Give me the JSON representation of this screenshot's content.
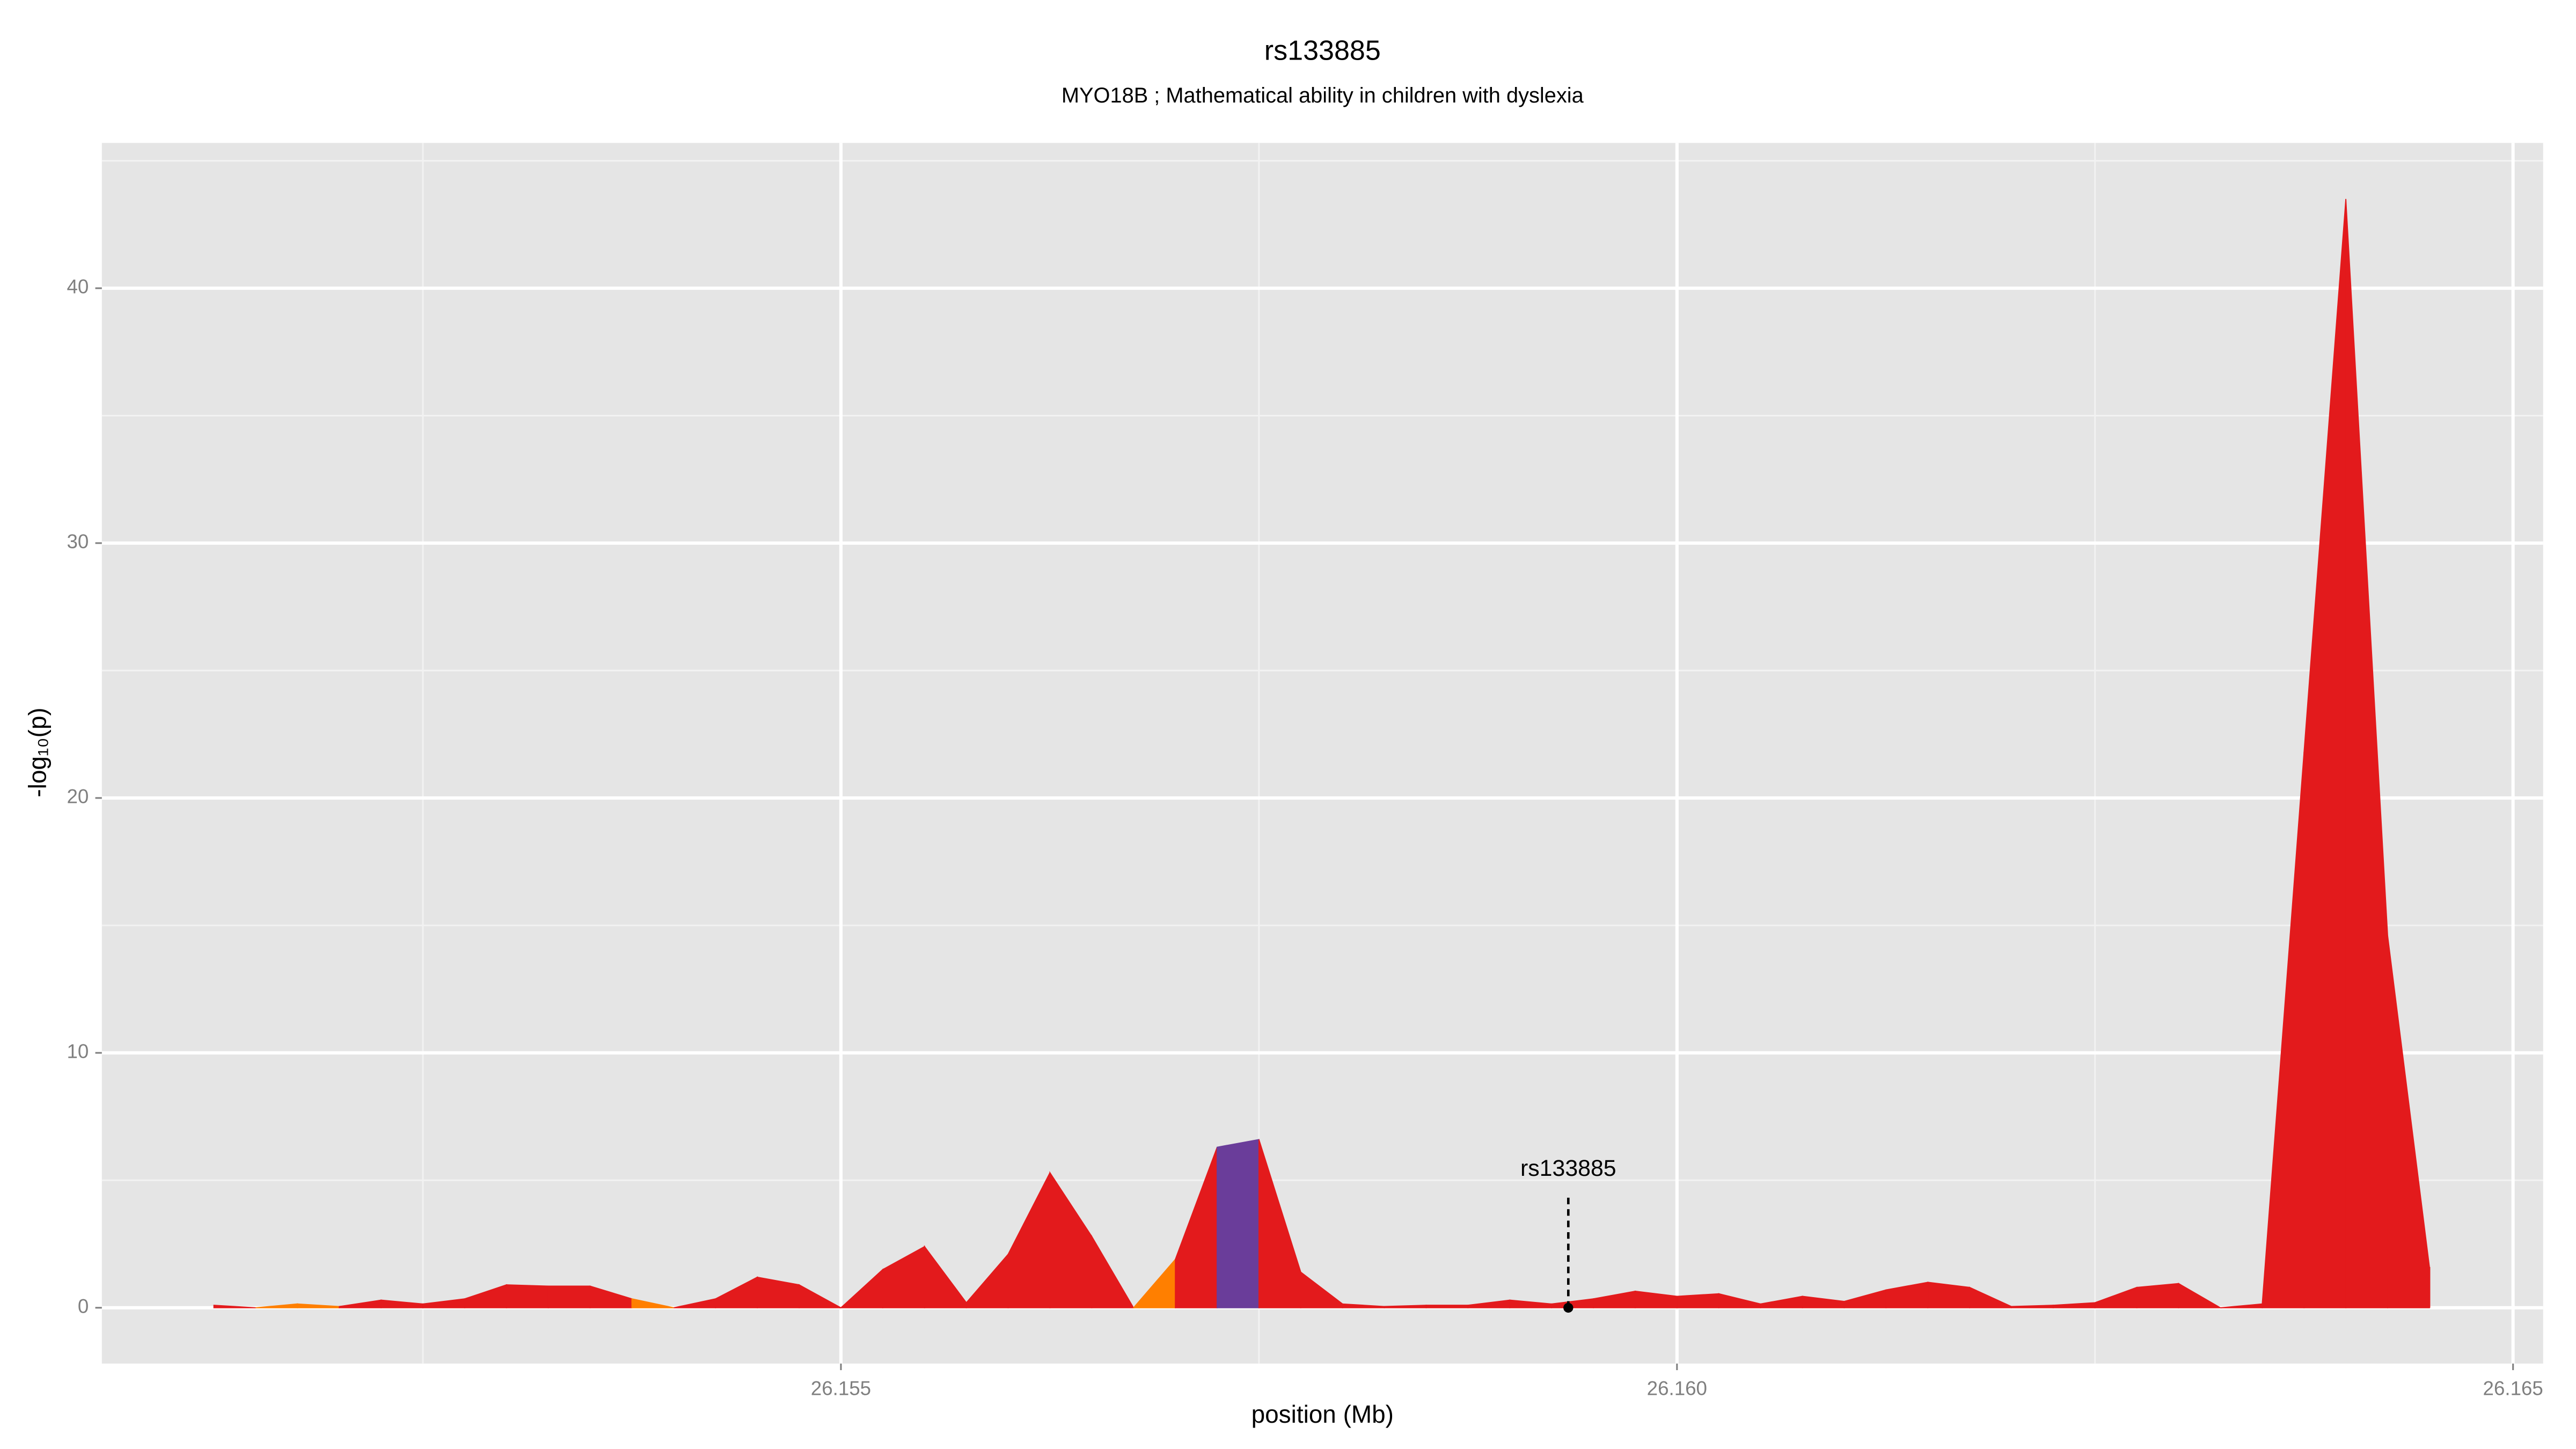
{
  "chart_data": {
    "type": "area",
    "title": "rs133885",
    "subtitle": "MYO18B ; Mathematical ability in children with dyslexia",
    "x_label": "position (Mb)",
    "y_label": "-log₁₀(p)",
    "x": [
      26.15125,
      26.1515,
      26.15175,
      26.152,
      26.15225,
      26.1525,
      26.15275,
      26.153,
      26.15325,
      26.1535,
      26.15375,
      26.154,
      26.15425,
      26.1545,
      26.15475,
      26.155,
      26.15525,
      26.1555,
      26.15575,
      26.156,
      26.15625,
      26.1565,
      26.15675,
      26.157,
      26.15725,
      26.1575,
      26.15775,
      26.158,
      26.15825,
      26.1585,
      26.15875,
      26.159,
      26.15925,
      26.1595,
      26.15975,
      26.16,
      26.16025,
      26.1605,
      26.16075,
      26.161,
      26.16125,
      26.1615,
      26.16175,
      26.162,
      26.16225,
      26.1625,
      26.16275,
      26.163,
      26.16325,
      26.1635,
      26.16375,
      26.164,
      26.16425,
      26.1645
    ],
    "values": [
      0.1,
      0,
      0.15,
      0.05,
      0.3,
      0.15,
      0.35,
      0.9,
      0.85,
      0.85,
      0.35,
      0,
      0.35,
      1.2,
      0.9,
      0,
      1.5,
      2.4,
      0.2,
      2.1,
      5.3,
      2.8,
      0,
      1.9,
      6.3,
      6.6,
      1.4,
      0.15,
      0.05,
      0.1,
      0.1,
      0.3,
      0.15,
      0.35,
      0.65,
      0.45,
      0.55,
      0.15,
      0.45,
      0.25,
      0.7,
      1.0,
      0.8,
      0.05,
      0.1,
      0.2,
      0.8,
      0.95,
      0,
      0.15,
      21.8,
      43.5,
      14.6,
      1.6
    ],
    "colors": [
      "#e31a1c",
      "#ff7f00",
      "#ff7f00",
      "#e31a1c",
      "#e31a1c",
      "#e31a1c",
      "#e31a1c",
      "#e31a1c",
      "#e31a1c",
      "#e31a1c",
      "#ff7f00",
      "#e31a1c",
      "#e31a1c",
      "#e31a1c",
      "#e31a1c",
      "#e31a1c",
      "#e31a1c",
      "#e31a1c",
      "#e31a1c",
      "#e31a1c",
      "#e31a1c",
      "#e31a1c",
      "#ff7f00",
      "#e31a1c",
      "#6a3d9a",
      "#e31a1c",
      "#e31a1c",
      "#e31a1c",
      "#e31a1c",
      "#e31a1c",
      "#e31a1c",
      "#e31a1c",
      "#e31a1c",
      "#e31a1c",
      "#e31a1c",
      "#e31a1c",
      "#e31a1c",
      "#e31a1c",
      "#e31a1c",
      "#e31a1c",
      "#e31a1c",
      "#e31a1c",
      "#e31a1c",
      "#e31a1c",
      "#e31a1c",
      "#e31a1c",
      "#e31a1c",
      "#e31a1c",
      "#e31a1c",
      "#e31a1c",
      "#e31a1c",
      "#e31a1c",
      "#e31a1c",
      "#e31a1c"
    ],
    "annotation": {
      "label": "rs133885",
      "x": 26.15935,
      "y": 0
    },
    "xlim": [
      26.15058,
      26.16518
    ],
    "ylim": [
      -2.19,
      45.7
    ],
    "xticks": [
      26.155,
      {
        "value": 26.16,
        "label": "26.160"
      },
      26.165
    ],
    "yticks": [
      0,
      10,
      20,
      30,
      40
    ],
    "x_minor_grid": [
      26.1525,
      26.1575,
      26.1625
    ],
    "y_minor_grid": [
      5,
      15,
      25,
      35,
      45
    ],
    "grid": true
  }
}
